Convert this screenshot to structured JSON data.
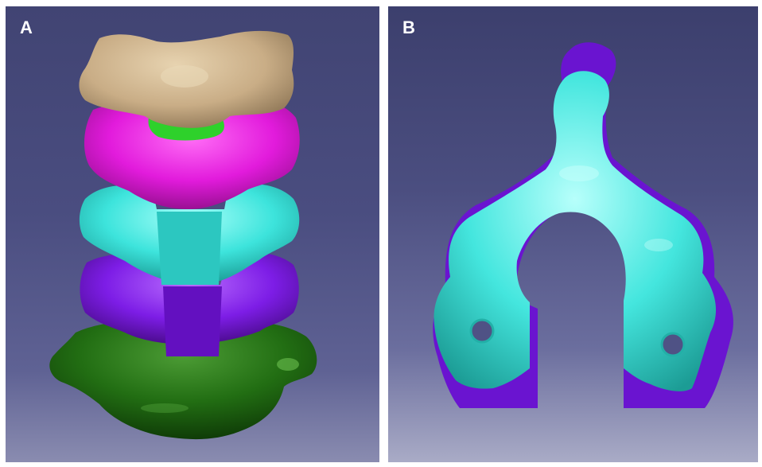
{
  "panels": [
    {
      "label": "A"
    },
    {
      "label": "B"
    }
  ],
  "colors": {
    "background_top": "#414473",
    "background_bottom": "#8a8cb0",
    "tan_vertebra": "#cdb38e",
    "magenta_vertebra": "#e61ee0",
    "cyan_vertebra": "#3fe8e0",
    "purple_vertebra": "#7a1ee0",
    "dark_green_vertebra": "#1f6e12",
    "bright_green_disc": "#2ed12b"
  },
  "icons": {
    "panel_a": "cervical-spine-stack-model",
    "panel_b": "single-vertebra-split-model"
  }
}
